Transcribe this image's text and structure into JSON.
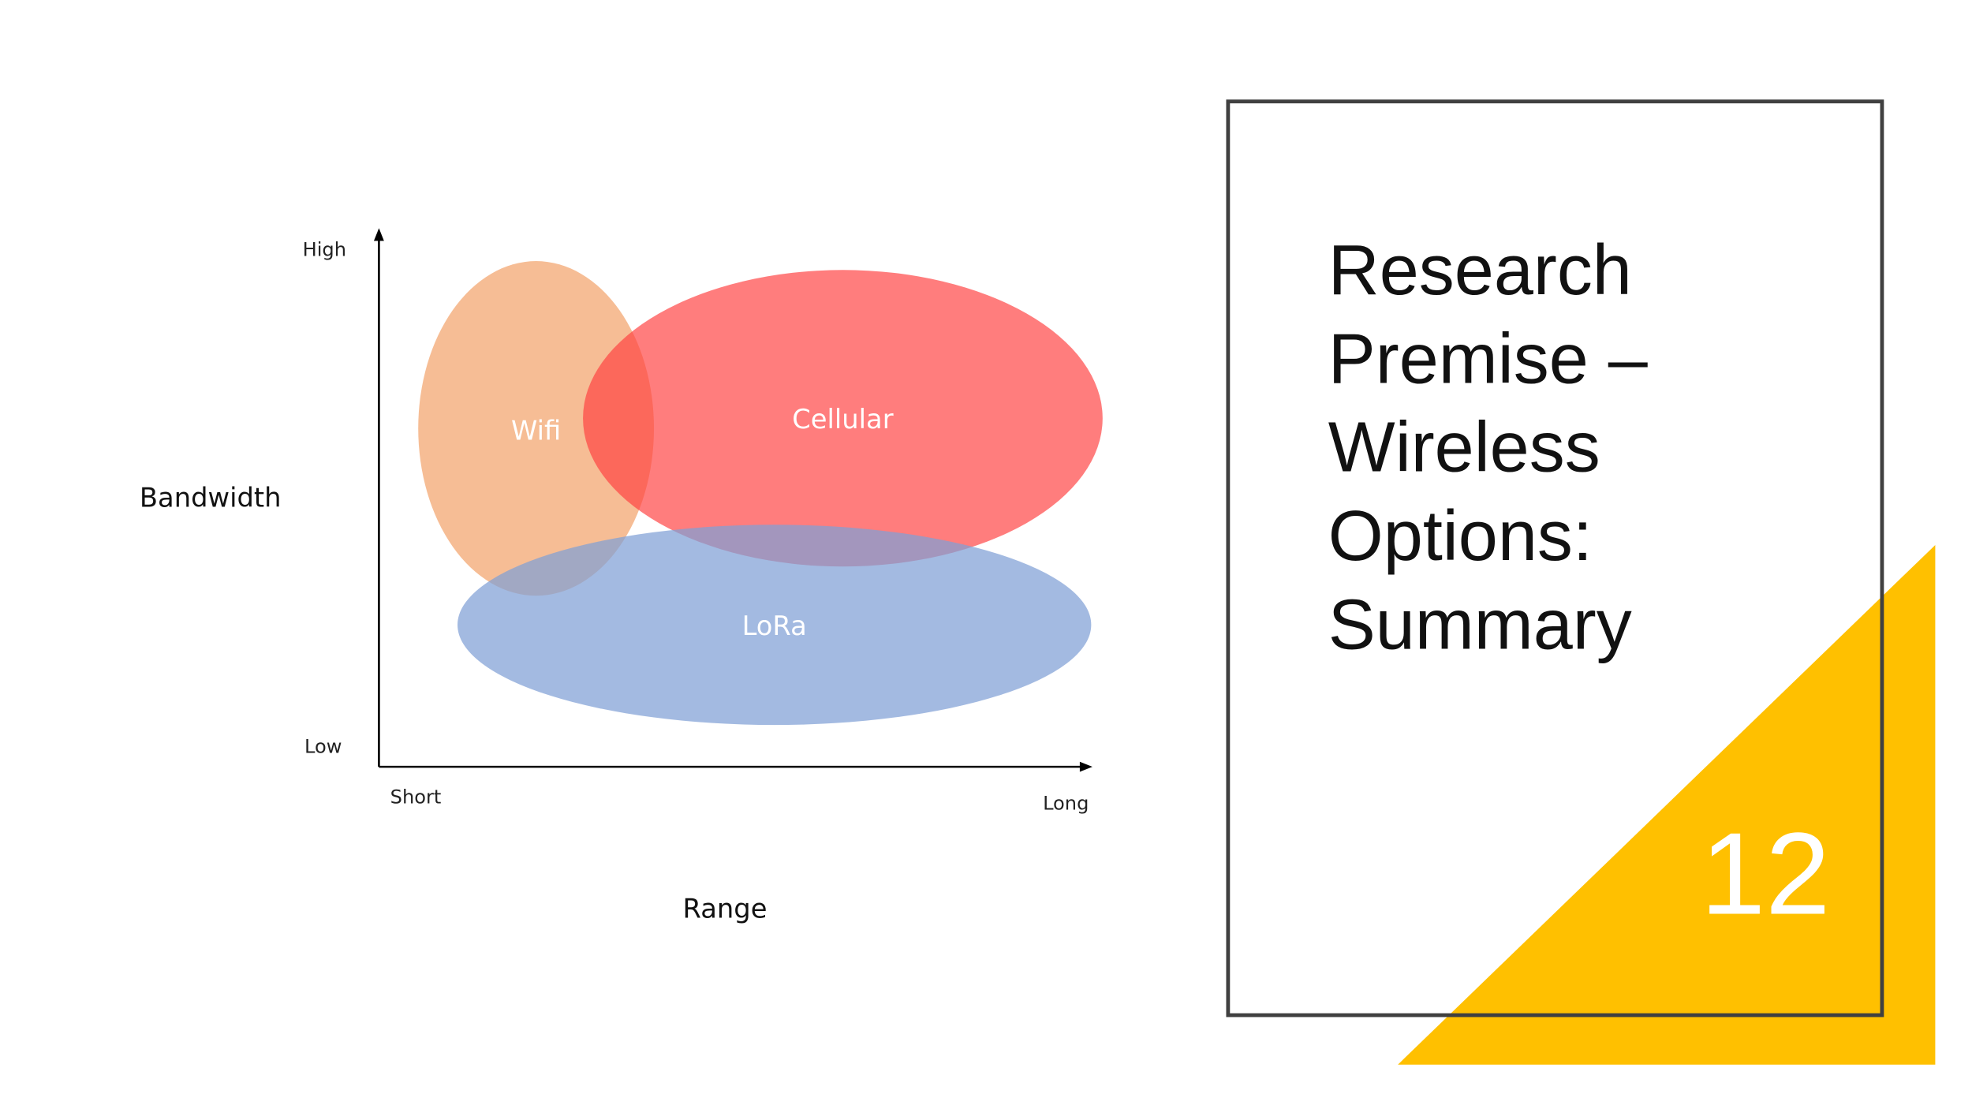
{
  "diagram": {
    "y_axis": {
      "title": "Bandwidth",
      "high": "High",
      "low": "Low"
    },
    "x_axis": {
      "title": "Range",
      "short": "Short",
      "long": "Long"
    },
    "ellipses": [
      {
        "label": "Wifi"
      },
      {
        "label": "Cellular"
      },
      {
        "label": "LoRa"
      }
    ]
  },
  "title_lines": [
    "Research",
    "Premise –",
    "Wireless",
    "Options:",
    "Summary"
  ],
  "slide_number": "12"
}
